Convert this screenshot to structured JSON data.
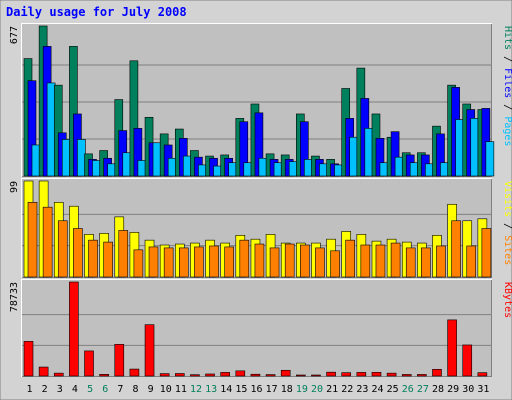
{
  "chart_data": {
    "type": "bar",
    "title": "Daily usage for July 2008",
    "categories": [
      "1",
      "2",
      "3",
      "4",
      "5",
      "6",
      "7",
      "8",
      "9",
      "10",
      "11",
      "12",
      "13",
      "14",
      "15",
      "16",
      "17",
      "18",
      "19",
      "20",
      "21",
      "22",
      "23",
      "24",
      "25",
      "26",
      "27",
      "28",
      "29",
      "30",
      "31"
    ],
    "weekend_days": [
      "5",
      "6",
      "12",
      "13",
      "19",
      "20",
      "26",
      "27"
    ],
    "colors": {
      "hits": "#00805c",
      "files": "#0000ff",
      "pages": "#00c0ff",
      "visits": "#ffff00",
      "sites": "#ff8000",
      "kbytes": "#ff0000",
      "weekday_label": "#000000",
      "weekend_label": "#00805c",
      "panel_bg": "#c0c0c0",
      "frame_bg": "#d3d3d3"
    },
    "panels": [
      {
        "ymax": 677,
        "ytick_label": "677",
        "legend": [
          {
            "text": "Hits",
            "color": "#00805c"
          },
          {
            "text": " / ",
            "color": "#000000"
          },
          {
            "text": "Files",
            "color": "#0000ff"
          },
          {
            "text": " / ",
            "color": "#000000"
          },
          {
            "text": "Pages",
            "color": "#00c0ff"
          }
        ],
        "series": [
          {
            "name": "Hits",
            "color": "#00805c",
            "values": [
              530,
              677,
              410,
              585,
              100,
              115,
              345,
              520,
              265,
              190,
              212,
              115,
              90,
              95,
              260,
              325,
              100,
              95,
              280,
              90,
              75,
              395,
              487,
              280,
              175,
              105,
              105,
              225,
              410,
              325,
              300
            ]
          },
          {
            "name": "Files",
            "color": "#0000ff",
            "values": [
              430,
              585,
              195,
              280,
              75,
              80,
              205,
              215,
              150,
              140,
              170,
              85,
              80,
              80,
              245,
              285,
              75,
              75,
              245,
              75,
              55,
              260,
              350,
              170,
              200,
              95,
              95,
              190,
              400,
              300,
              305
            ]
          },
          {
            "name": "Pages",
            "color": "#00c0ff",
            "values": [
              140,
              420,
              165,
              165,
              70,
              55,
              105,
              70,
              150,
              80,
              90,
              50,
              45,
              60,
              60,
              80,
              60,
              65,
              75,
              55,
              50,
              175,
              215,
              60,
              85,
              60,
              55,
              60,
              255,
              260,
              155
            ]
          }
        ]
      },
      {
        "ymax": 99,
        "ytick_label": "99",
        "legend": [
          {
            "text": "Visits",
            "color": "#ffff00"
          },
          {
            "text": " / ",
            "color": "#000000"
          },
          {
            "text": "Sites",
            "color": "#ff8000"
          }
        ],
        "series": [
          {
            "name": "Visits",
            "color": "#ffff00",
            "values": [
              99,
              99,
              77,
              73,
              44,
              45,
              62,
              46,
              38,
              33,
              34,
              35,
              38,
              35,
              43,
              39,
              44,
              35,
              35,
              35,
              39,
              47,
              44,
              37,
              39,
              36,
              35,
              43,
              75,
              58,
              60
            ]
          },
          {
            "name": "Sites",
            "color": "#ff8000",
            "values": [
              77,
              72,
              58,
              50,
              38,
              36,
              48,
              28,
              31,
              30,
              30,
              31,
              32,
              31,
              38,
              34,
              30,
              34,
              33,
              30,
              27,
              38,
              33,
              33,
              35,
              30,
              30,
              32,
              58,
              32,
              50
            ]
          }
        ]
      },
      {
        "ymax": 78733,
        "ytick_label": "78733",
        "legend": [
          {
            "text": "KBytes",
            "color": "#ff0000"
          }
        ],
        "series": [
          {
            "name": "KBytes",
            "color": "#ff0000",
            "values": [
              29000,
              7500,
              2400,
              78733,
              21000,
              1400,
              26500,
              5800,
              43000,
              2000,
              2100,
              1100,
              1700,
              3000,
              4300,
              1500,
              1200,
              4800,
              700,
              600,
              3200,
              2800,
              3000,
              3100,
              2400,
              1300,
              1300,
              5600,
              47000,
              26000,
              2800
            ]
          }
        ]
      }
    ]
  }
}
